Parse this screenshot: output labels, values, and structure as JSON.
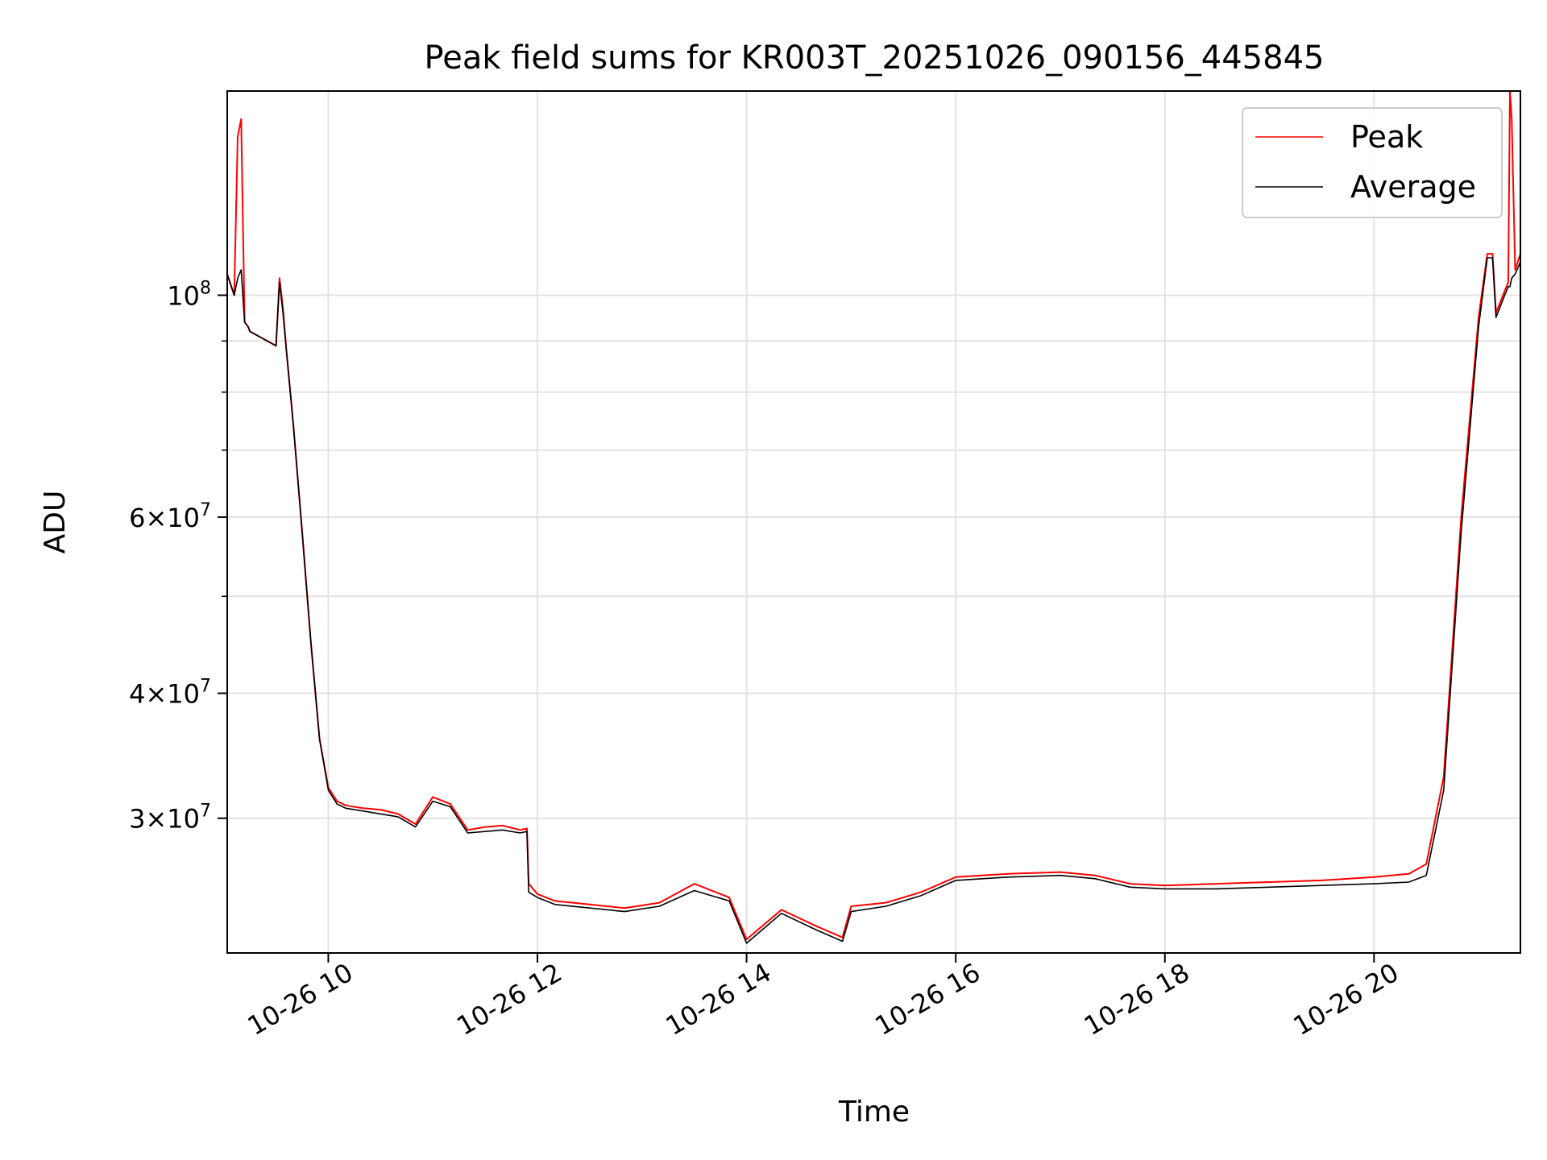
{
  "chart_data": {
    "type": "line",
    "title": "Peak field sums for KR003T_20251026_090156_445845",
    "xlabel": "Time",
    "ylabel": "ADU",
    "yscale": "log",
    "grid": true,
    "legend_position": "top-right",
    "xlim": [
      "10-26 09:02",
      "10-26 21:24"
    ],
    "ylim": [
      22000000,
      160000000
    ],
    "x_ticks": [
      "10-26 10",
      "10-26 12",
      "10-26 14",
      "10-26 16",
      "10-26 18",
      "10-26 20"
    ],
    "y_ticks": [
      {
        "value": 100000000,
        "base": "10",
        "exp": "8",
        "coef": ""
      },
      {
        "value": 60000000,
        "base": "10",
        "exp": "7",
        "coef": "6"
      },
      {
        "value": 40000000,
        "base": "10",
        "exp": "7",
        "coef": "4"
      },
      {
        "value": 30000000,
        "base": "10",
        "exp": "7",
        "coef": "3"
      }
    ],
    "series": [
      {
        "name": "Peak",
        "color": "#ff0000",
        "x": [
          "10-26 09:02",
          "10-26 09:06",
          "10-26 09:08",
          "10-26 09:10",
          "10-26 09:12",
          "10-26 09:14",
          "10-26 09:15",
          "10-26 09:30",
          "10-26 09:32",
          "10-26 09:34",
          "10-26 09:36",
          "10-26 09:40",
          "10-26 09:45",
          "10-26 09:50",
          "10-26 09:55",
          "10-26 10:00",
          "10-26 10:05",
          "10-26 10:10",
          "10-26 10:20",
          "10-26 10:30",
          "10-26 10:40",
          "10-26 10:50",
          "10-26 11:00",
          "10-26 11:10",
          "10-26 11:20",
          "10-26 11:30",
          "10-26 11:40",
          "10-26 11:50",
          "10-26 11:54",
          "10-26 11:55",
          "10-26 12:00",
          "10-26 12:10",
          "10-26 12:30",
          "10-26 12:50",
          "10-26 13:10",
          "10-26 13:30",
          "10-26 13:50",
          "10-26 14:00",
          "10-26 14:20",
          "10-26 14:40",
          "10-26 14:55",
          "10-26 15:00",
          "10-26 15:20",
          "10-26 15:40",
          "10-26 16:00",
          "10-26 16:30",
          "10-26 17:00",
          "10-26 17:20",
          "10-26 17:40",
          "10-26 18:00",
          "10-26 18:30",
          "10-26 19:00",
          "10-26 19:30",
          "10-26 20:00",
          "10-26 20:20",
          "10-26 20:30",
          "10-26 20:40",
          "10-26 20:50",
          "10-26 21:00",
          "10-26 21:05",
          "10-26 21:08",
          "10-26 21:10",
          "10-26 21:15",
          "10-26 21:17",
          "10-26 21:18",
          "10-26 21:19",
          "10-26 21:21",
          "10-26 21:24"
        ],
        "values": [
          105000000,
          100000000,
          144000000,
          150000000,
          94000000,
          93000000,
          92000000,
          89000000,
          104000000,
          97000000,
          88000000,
          74000000,
          58000000,
          45000000,
          36000000,
          32200000,
          31200000,
          30900000,
          30700000,
          30600000,
          30300000,
          29600000,
          31500000,
          31000000,
          29200000,
          29400000,
          29500000,
          29200000,
          29300000,
          25800000,
          25200000,
          24800000,
          24600000,
          24400000,
          24700000,
          25800000,
          25000000,
          22700000,
          24300000,
          23400000,
          22800000,
          24500000,
          24700000,
          25300000,
          26200000,
          26400000,
          26500000,
          26300000,
          25800000,
          25700000,
          25800000,
          25900000,
          26000000,
          26200000,
          26400000,
          27000000,
          33000000,
          60000000,
          95000000,
          110000000,
          110000000,
          96000000,
          101000000,
          103000000,
          160000000,
          150000000,
          106000000,
          110000000
        ]
      },
      {
        "name": "Average",
        "color": "#000000",
        "x": [
          "10-26 09:02",
          "10-26 09:06",
          "10-26 09:08",
          "10-26 09:10",
          "10-26 09:12",
          "10-26 09:14",
          "10-26 09:15",
          "10-26 09:30",
          "10-26 09:32",
          "10-26 09:34",
          "10-26 09:36",
          "10-26 09:40",
          "10-26 09:45",
          "10-26 09:50",
          "10-26 09:55",
          "10-26 10:00",
          "10-26 10:05",
          "10-26 10:10",
          "10-26 10:20",
          "10-26 10:30",
          "10-26 10:40",
          "10-26 10:50",
          "10-26 11:00",
          "10-26 11:10",
          "10-26 11:20",
          "10-26 11:30",
          "10-26 11:40",
          "10-26 11:50",
          "10-26 11:54",
          "10-26 11:55",
          "10-26 12:00",
          "10-26 12:10",
          "10-26 12:30",
          "10-26 12:50",
          "10-26 13:10",
          "10-26 13:30",
          "10-26 13:50",
          "10-26 14:00",
          "10-26 14:20",
          "10-26 14:40",
          "10-26 14:55",
          "10-26 15:00",
          "10-26 15:20",
          "10-26 15:40",
          "10-26 16:00",
          "10-26 16:30",
          "10-26 17:00",
          "10-26 17:20",
          "10-26 17:40",
          "10-26 18:00",
          "10-26 18:30",
          "10-26 19:00",
          "10-26 19:30",
          "10-26 20:00",
          "10-26 20:20",
          "10-26 20:30",
          "10-26 20:40",
          "10-26 20:50",
          "10-26 21:00",
          "10-26 21:05",
          "10-26 21:08",
          "10-26 21:10",
          "10-26 21:15",
          "10-26 21:17",
          "10-26 21:18",
          "10-26 21:19",
          "10-26 21:21",
          "10-26 21:24"
        ],
        "values": [
          105000000,
          100000000,
          104000000,
          106000000,
          94000000,
          93000000,
          92000000,
          89000000,
          103000000,
          96000000,
          88000000,
          74000000,
          58000000,
          45000000,
          36000000,
          32000000,
          31000000,
          30700000,
          30500000,
          30300000,
          30100000,
          29400000,
          31200000,
          30800000,
          29000000,
          29100000,
          29200000,
          29000000,
          29100000,
          25300000,
          25000000,
          24600000,
          24400000,
          24200000,
          24500000,
          25400000,
          24800000,
          22500000,
          24100000,
          23200000,
          22600000,
          24200000,
          24500000,
          25100000,
          26000000,
          26200000,
          26300000,
          26100000,
          25600000,
          25500000,
          25500000,
          25600000,
          25700000,
          25800000,
          25900000,
          26300000,
          32000000,
          58000000,
          93000000,
          109000000,
          109000000,
          95000000,
          100000000,
          102000000,
          102000000,
          104000000,
          105000000,
          108000000
        ]
      }
    ]
  }
}
